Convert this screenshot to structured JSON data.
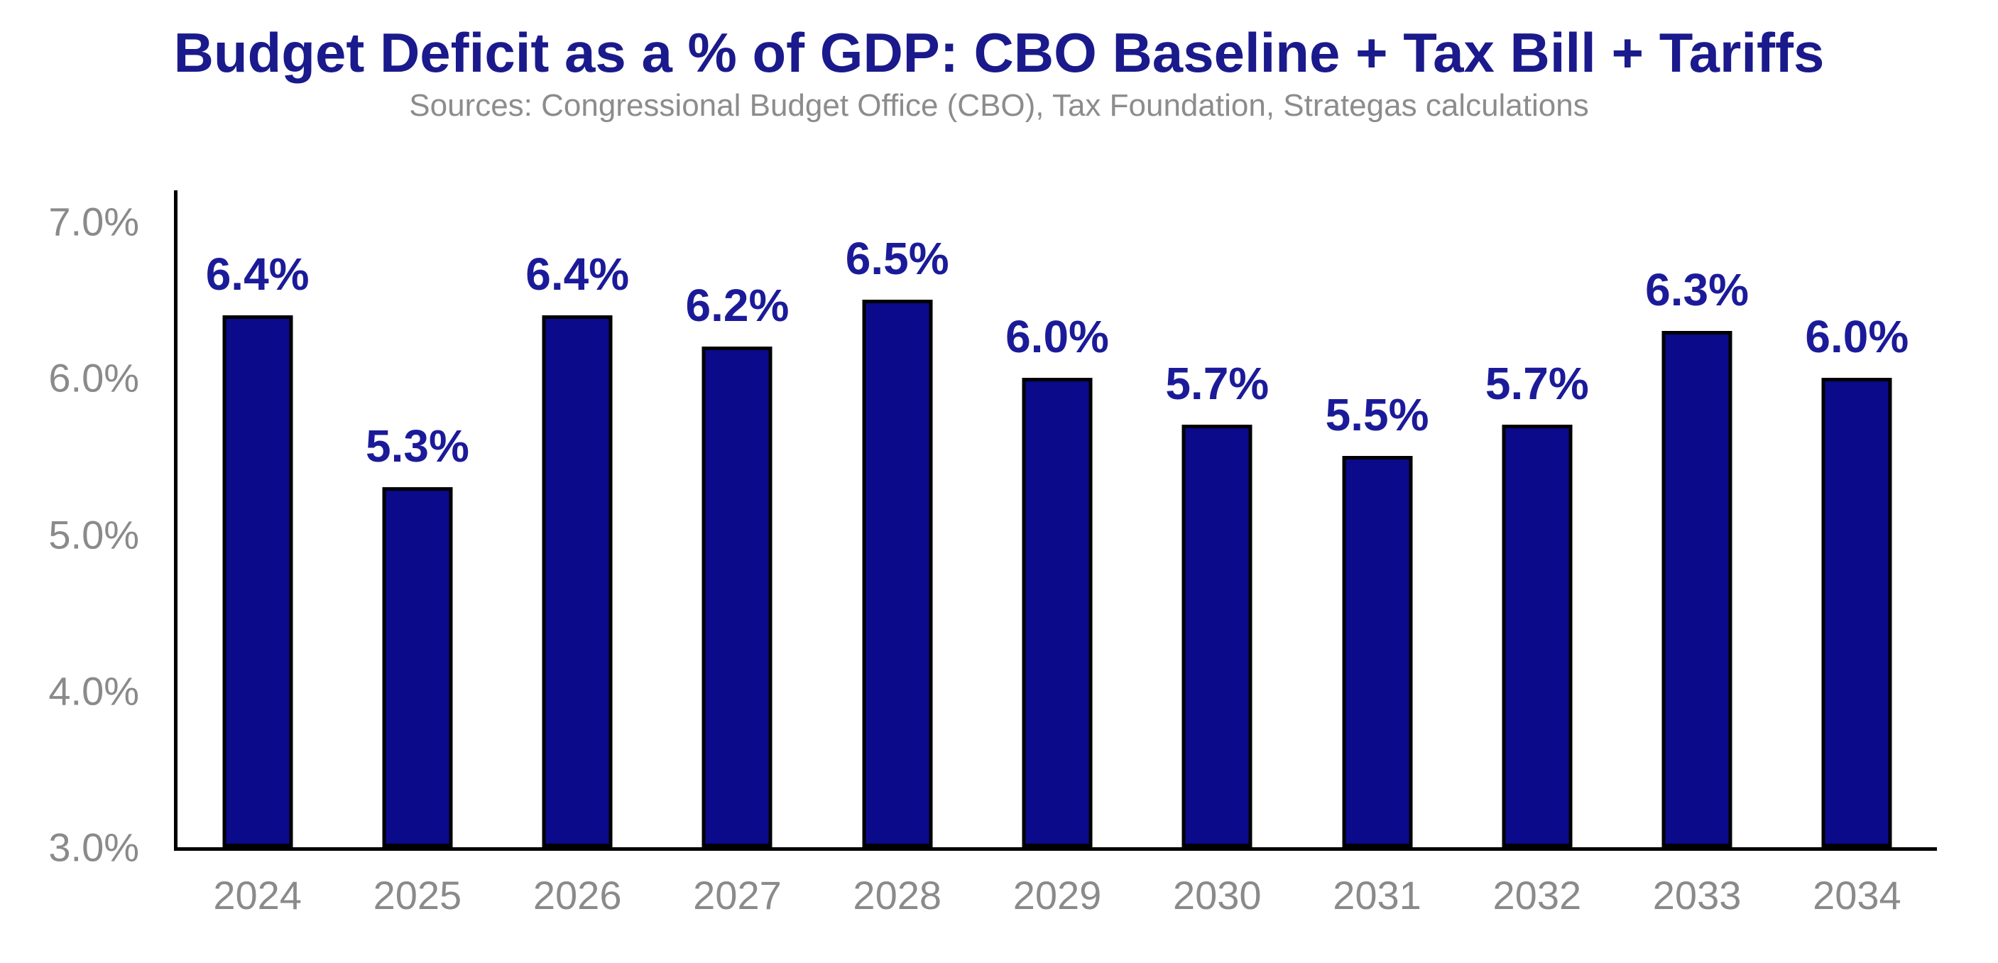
{
  "chart_data": {
    "type": "bar",
    "title": "Budget Deficit as a % of GDP: CBO Baseline + Tax Bill + Tariffs",
    "source_note": "Sources: Congressional Budget Office (CBO), Tax Foundation, Strategas calculations",
    "categories": [
      "2024",
      "2025",
      "2026",
      "2027",
      "2028",
      "2029",
      "2030",
      "2031",
      "2032",
      "2033",
      "2034"
    ],
    "values": [
      6.4,
      5.3,
      6.4,
      6.2,
      6.5,
      6.0,
      5.7,
      5.5,
      5.7,
      6.3,
      6.0
    ],
    "data_labels": [
      "6.4%",
      "5.3%",
      "6.4%",
      "6.2%",
      "6.5%",
      "6.0%",
      "5.7%",
      "5.5%",
      "5.7%",
      "6.3%",
      "6.0%"
    ],
    "xlabel": "",
    "ylabel": "",
    "ylim": [
      3.0,
      7.2
    ],
    "yticks": [
      3.0,
      4.0,
      5.0,
      6.0,
      7.0
    ],
    "ytick_labels": [
      "3.0%",
      "4.0%",
      "5.0%",
      "6.0%",
      "7.0%"
    ],
    "grid": false,
    "legend": false,
    "layout": {
      "value_label_position": "above-bar",
      "axis_lines": "left-and-bottom"
    },
    "colors": {
      "title_color": "#1A1A8C",
      "subtitle_color": "#8C8C8C",
      "label_color": "#1B1B99",
      "bar_fill": "#0A0A8B",
      "bar_border": "#000000",
      "axis_color": "#000000",
      "tick_color": "#8A8A8A",
      "page_bg": "#FFFFFF"
    }
  }
}
